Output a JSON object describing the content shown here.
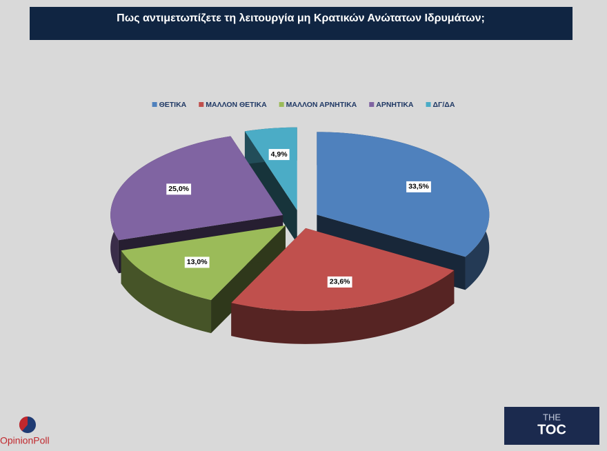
{
  "chart_data": {
    "type": "pie3d",
    "title": "Πως αντιμετωπίζετε τη λειτουργία μη Κρατικών Ανώτατων Ιδρυμάτων;",
    "categories": [
      "ΘΕΤΙΚΑ",
      "ΜΑΛΛΟΝ ΘΕΤΙΚΑ",
      "ΜΑΛΛΟΝ ΑΡΝΗΤΙΚΑ",
      "ΑΡΝΗΤΙΚΑ",
      "ΔΓ/ΔΑ"
    ],
    "values": [
      33.5,
      23.6,
      13.0,
      25.0,
      4.9
    ],
    "value_labels": [
      "33,5%",
      "23,6%",
      "13,0%",
      "25,0%",
      "4,9%"
    ],
    "colors": [
      "#4f81bd",
      "#c0504d",
      "#9bbb59",
      "#8064a2",
      "#4bacc6"
    ],
    "legend": "top"
  },
  "logos": [
    "OpinionPoll",
    "THE",
    "TOC"
  ]
}
